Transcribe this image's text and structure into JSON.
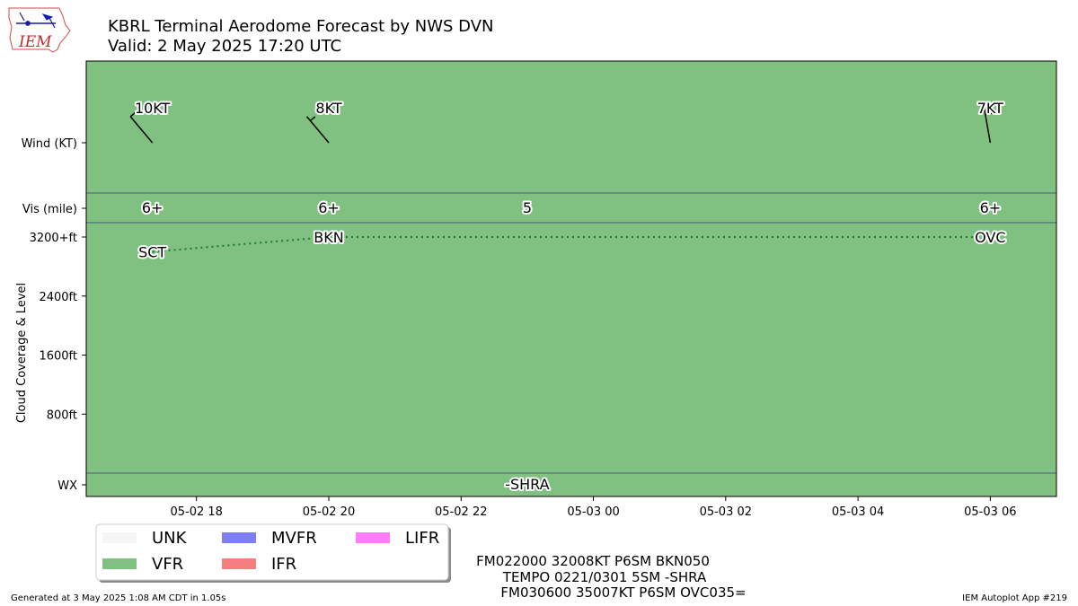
{
  "header": {
    "title": "KBRL Terminal Aerodome Forecast by NWS DVN",
    "subtitle": "Valid: 2 May 2025 17:20 UTC",
    "logo_text": "IEM"
  },
  "colors": {
    "vfr": "#80c080",
    "unk": "#f5f5f5",
    "mvfr": "#7e7ef8",
    "ifr": "#f77e7e",
    "lifr": "#fd7efd",
    "band_line": "#4a5a80",
    "cloud_line": "#1a7a3a"
  },
  "chart_data": {
    "type": "line",
    "x_range_utc": [
      "2025-05-02 16:20",
      "2025-05-03 07:00"
    ],
    "x_ticks": [
      {
        "t": "2025-05-02 18:00",
        "label": "05-02 18"
      },
      {
        "t": "2025-05-02 20:00",
        "label": "05-02 20"
      },
      {
        "t": "2025-05-02 22:00",
        "label": "05-02 22"
      },
      {
        "t": "2025-05-03 00:00",
        "label": "05-03 00"
      },
      {
        "t": "2025-05-03 02:00",
        "label": "05-03 02"
      },
      {
        "t": "2025-05-03 04:00",
        "label": "05-03 04"
      },
      {
        "t": "2025-05-03 06:00",
        "label": "05-03 06"
      }
    ],
    "y_ticks": [
      {
        "v": 3200,
        "label": "3200+ft"
      },
      {
        "v": 2400,
        "label": "2400ft"
      },
      {
        "v": 1600,
        "label": "1600ft"
      },
      {
        "v": 800,
        "label": "800ft"
      }
    ],
    "y_row_labels": {
      "wind": "Wind (KT)",
      "vis": "Vis (mile)",
      "wx": "WX"
    },
    "ylabel": "Cloud Coverage & Level",
    "category_periods": [
      {
        "start": "2025-05-02 16:20",
        "end": "2025-05-03 07:00",
        "category": "VFR"
      }
    ],
    "wind": [
      {
        "t": "2025-05-02 17:20",
        "dir": 320,
        "speed": 10,
        "label": "10KT"
      },
      {
        "t": "2025-05-02 20:00",
        "dir": 320,
        "speed": 8,
        "label": "8KT"
      },
      {
        "t": "2025-05-03 06:00",
        "dir": 350,
        "speed": 7,
        "label": "7KT"
      }
    ],
    "visibility": [
      {
        "t": "2025-05-02 17:20",
        "label": "6+"
      },
      {
        "t": "2025-05-02 20:00",
        "label": "6+"
      },
      {
        "t": "2025-05-02 23:00",
        "label": "5"
      },
      {
        "t": "2025-05-03 06:00",
        "label": "6+"
      }
    ],
    "clouds": [
      {
        "t": "2025-05-02 17:20",
        "level": 3000,
        "label": "SCT"
      },
      {
        "t": "2025-05-02 20:00",
        "level": 3200,
        "label": "BKN"
      },
      {
        "t": "2025-05-03 06:00",
        "level": 3200,
        "label": "OVC"
      }
    ],
    "weather": [
      {
        "t": "2025-05-02 23:00",
        "label": "-SHRA"
      }
    ]
  },
  "legend": {
    "items": [
      {
        "label": "UNK",
        "color": "#f5f5f5"
      },
      {
        "label": "VFR",
        "color": "#80c080"
      },
      {
        "label": "MVFR",
        "color": "#7e7ef8"
      },
      {
        "label": "IFR",
        "color": "#f77e7e"
      },
      {
        "label": "LIFR",
        "color": "#fd7efd"
      }
    ]
  },
  "taf_text": [
    "FM022000 32008KT P6SM BKN050",
    "TEMPO 0221/0301 5SM -SHRA",
    "FM030600 35007KT P6SM OVC035="
  ],
  "footer": {
    "generated": "Generated at 3 May 2025 1:08 AM CDT in 1.05s",
    "app": "IEM Autoplot App #219"
  }
}
